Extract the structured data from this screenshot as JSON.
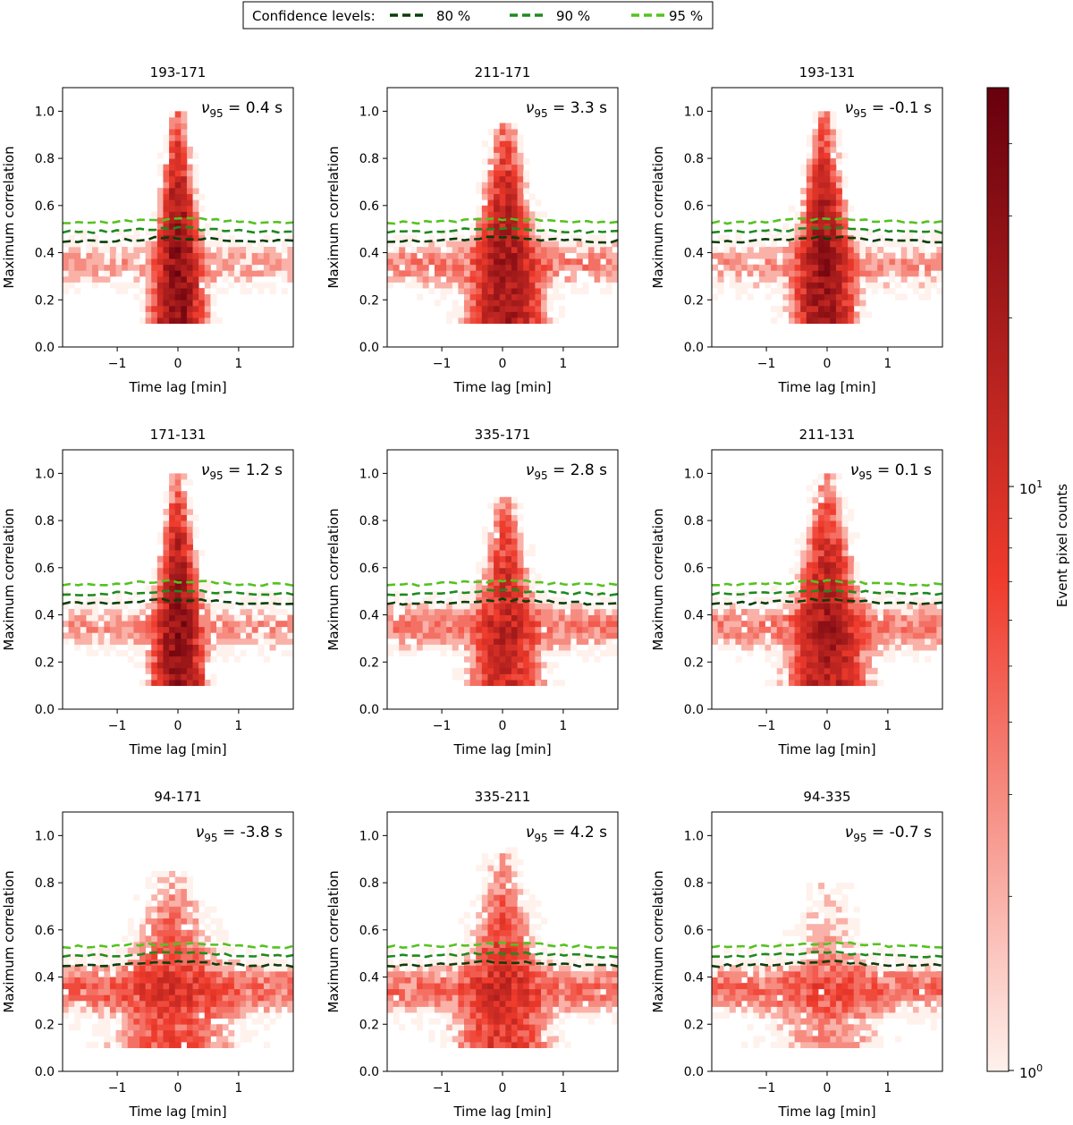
{
  "legend": {
    "title": "Confidence levels:",
    "entries": [
      {
        "label": "80 %",
        "color": "#0a3d0a"
      },
      {
        "label": "90 %",
        "color": "#1e8a1e"
      },
      {
        "label": "95 %",
        "color": "#55c21f"
      }
    ]
  },
  "colorbar": {
    "label": "Event  pixel counts",
    "scale": "log",
    "min": 1,
    "max": 50,
    "tick_labels": [
      "10",
      "10"
    ],
    "tick_exponents": [
      "1",
      "0"
    ],
    "color_low": "#fff1ec",
    "color_mid": "#ef3b2c",
    "color_high": "#67000d"
  },
  "nu_label_prefix": "ν",
  "nu_label_subscript": "95",
  "chart_data": [
    {
      "type": "heatmap",
      "title": "193-171",
      "nu95": "=  0.4 s",
      "xlabel": "Time lag [min]",
      "ylabel": "Maximum correlation",
      "xlim": [
        -1.9,
        1.9
      ],
      "ylim": [
        0,
        1.1
      ],
      "xticks": [
        "−1",
        "0",
        "1"
      ],
      "yticks": [
        "0.0",
        "0.2",
        "0.4",
        "0.6",
        "0.8",
        "1.0"
      ],
      "peak_lag": 0.0,
      "peak_corr": 1.0,
      "peak_strength": 1.0,
      "peak_width": 0.1,
      "background_level": 0.4,
      "confidence_80": 0.46,
      "confidence_90": 0.5,
      "confidence_95": 0.54
    },
    {
      "type": "heatmap",
      "title": "211-171",
      "nu95": "=  3.3 s",
      "xlabel": "Time lag [min]",
      "ylabel": "Maximum correlation",
      "xlim": [
        -1.9,
        1.9
      ],
      "ylim": [
        0,
        1.1
      ],
      "xticks": [
        "−1",
        "0",
        "1"
      ],
      "yticks": [
        "0.0",
        "0.2",
        "0.4",
        "0.6",
        "0.8",
        "1.0"
      ],
      "peak_lag": 0.05,
      "peak_corr": 0.95,
      "peak_strength": 0.7,
      "peak_width": 0.15,
      "background_level": 0.55,
      "confidence_80": 0.46,
      "confidence_90": 0.5,
      "confidence_95": 0.54
    },
    {
      "type": "heatmap",
      "title": "193-131",
      "nu95": "=  -0.1 s",
      "xlabel": "Time lag [min]",
      "ylabel": "Maximum correlation",
      "xlim": [
        -1.9,
        1.9
      ],
      "ylim": [
        0,
        1.1
      ],
      "xticks": [
        "−1",
        "0",
        "1"
      ],
      "yticks": [
        "0.0",
        "0.2",
        "0.4",
        "0.6",
        "0.8",
        "1.0"
      ],
      "peak_lag": -0.05,
      "peak_corr": 1.0,
      "peak_strength": 0.85,
      "peak_width": 0.12,
      "background_level": 0.45,
      "confidence_80": 0.46,
      "confidence_90": 0.5,
      "confidence_95": 0.54
    },
    {
      "type": "heatmap",
      "title": "171-131",
      "nu95": "=  1.2 s",
      "xlabel": "Time lag [min]",
      "ylabel": "Maximum correlation",
      "xlim": [
        -1.9,
        1.9
      ],
      "ylim": [
        0,
        1.1
      ],
      "xticks": [
        "−1",
        "0",
        "1"
      ],
      "yticks": [
        "0.0",
        "0.2",
        "0.4",
        "0.6",
        "0.8",
        "1.0"
      ],
      "peak_lag": 0.0,
      "peak_corr": 1.0,
      "peak_strength": 1.0,
      "peak_width": 0.1,
      "background_level": 0.45,
      "confidence_80": 0.46,
      "confidence_90": 0.5,
      "confidence_95": 0.54
    },
    {
      "type": "heatmap",
      "title": "335-171",
      "nu95": "=  2.8 s",
      "xlabel": "Time lag [min]",
      "ylabel": "Maximum correlation",
      "xlim": [
        -1.9,
        1.9
      ],
      "ylim": [
        0,
        1.1
      ],
      "xticks": [
        "−1",
        "0",
        "1"
      ],
      "yticks": [
        "0.0",
        "0.2",
        "0.4",
        "0.6",
        "0.8",
        "1.0"
      ],
      "peak_lag": 0.05,
      "peak_corr": 0.9,
      "peak_strength": 0.45,
      "peak_width": 0.15,
      "background_level": 0.6,
      "confidence_80": 0.46,
      "confidence_90": 0.5,
      "confidence_95": 0.54
    },
    {
      "type": "heatmap",
      "title": "211-131",
      "nu95": "=  0.1 s",
      "xlabel": "Time lag [min]",
      "ylabel": "Maximum correlation",
      "xlim": [
        -1.9,
        1.9
      ],
      "ylim": [
        0,
        1.1
      ],
      "xticks": [
        "−1",
        "0",
        "1"
      ],
      "yticks": [
        "0.0",
        "0.2",
        "0.4",
        "0.6",
        "0.8",
        "1.0"
      ],
      "peak_lag": 0.0,
      "peak_corr": 1.0,
      "peak_strength": 0.65,
      "peak_width": 0.15,
      "background_level": 0.6,
      "confidence_80": 0.46,
      "confidence_90": 0.5,
      "confidence_95": 0.54
    },
    {
      "type": "heatmap",
      "title": "94-171",
      "nu95": "=  -3.8 s",
      "xlabel": "Time lag [min]",
      "ylabel": "Maximum correlation",
      "xlim": [
        -1.9,
        1.9
      ],
      "ylim": [
        0,
        1.1
      ],
      "xticks": [
        "−1",
        "0",
        "1"
      ],
      "yticks": [
        "0.0",
        "0.2",
        "0.4",
        "0.6",
        "0.8",
        "1.0"
      ],
      "peak_lag": -0.1,
      "peak_corr": 0.85,
      "peak_strength": 0.2,
      "peak_width": 0.3,
      "background_level": 0.75,
      "confidence_80": 0.46,
      "confidence_90": 0.5,
      "confidence_95": 0.54
    },
    {
      "type": "heatmap",
      "title": "335-211",
      "nu95": "=  4.2 s",
      "xlabel": "Time lag [min]",
      "ylabel": "Maximum correlation",
      "xlim": [
        -1.9,
        1.9
      ],
      "ylim": [
        0,
        1.1
      ],
      "xticks": [
        "−1",
        "0",
        "1"
      ],
      "yticks": [
        "0.0",
        "0.2",
        "0.4",
        "0.6",
        "0.8",
        "1.0"
      ],
      "peak_lag": 0.0,
      "peak_corr": 0.95,
      "peak_strength": 0.3,
      "peak_width": 0.2,
      "background_level": 0.7,
      "confidence_80": 0.46,
      "confidence_90": 0.5,
      "confidence_95": 0.54
    },
    {
      "type": "heatmap",
      "title": "94-335",
      "nu95": "=  -0.7 s",
      "xlabel": "Time lag [min]",
      "ylabel": "Maximum correlation",
      "xlim": [
        -1.9,
        1.9
      ],
      "ylim": [
        0,
        1.1
      ],
      "xticks": [
        "−1",
        "0",
        "1"
      ],
      "yticks": [
        "0.0",
        "0.2",
        "0.4",
        "0.6",
        "0.8",
        "1.0"
      ],
      "peak_lag": 0.0,
      "peak_corr": 0.8,
      "peak_strength": 0.1,
      "peak_width": 0.3,
      "background_level": 0.7,
      "confidence_80": 0.46,
      "confidence_90": 0.5,
      "confidence_95": 0.54
    }
  ]
}
